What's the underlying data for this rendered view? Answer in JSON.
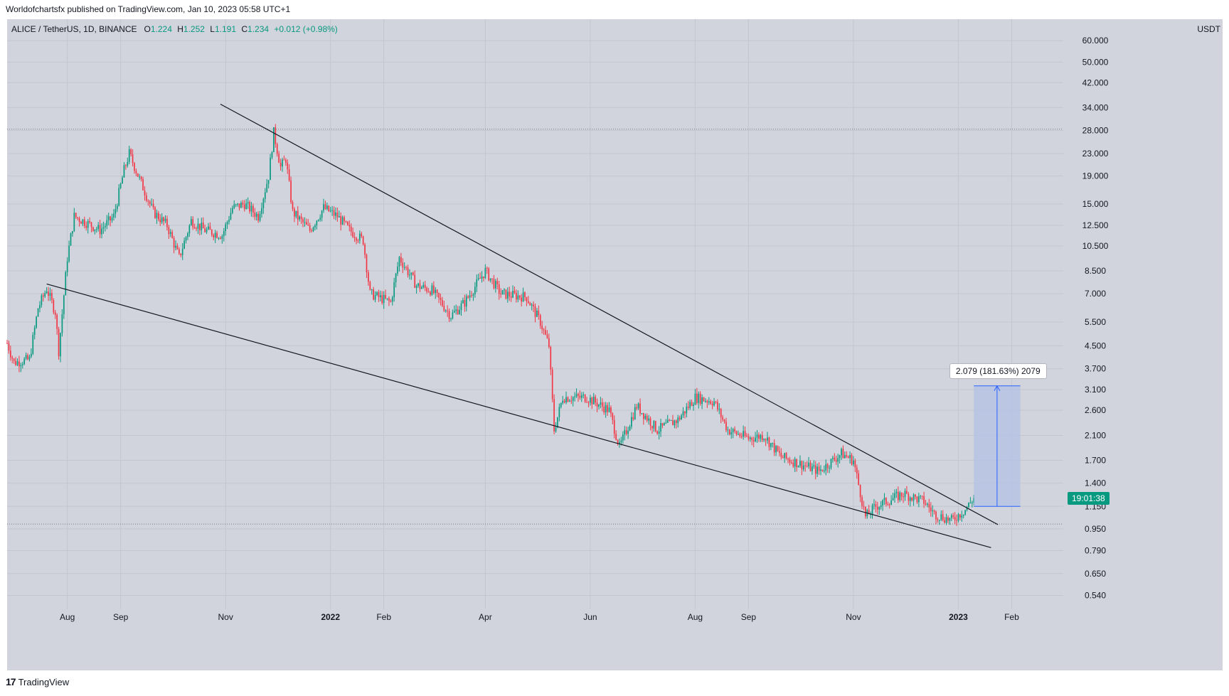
{
  "header": {
    "published_line": "Worldofchartsfx published on TradingView.com, Jan 10, 2023 05:58 UTC+1"
  },
  "symbol": {
    "name": "ALICE / TetherUS, 1D, BINANCE",
    "open_label": "O",
    "open": "1.224",
    "high_label": "H",
    "high": "1.252",
    "low_label": "L",
    "low": "1.191",
    "close_label": "C",
    "close": "1.234",
    "change": "+0.012 (+0.98%)"
  },
  "currency": "USDT",
  "footer": {
    "brand": "TradingView",
    "brand_mark": "17"
  },
  "measure_label": "2.079 (181.63%) 2079",
  "countdown": "19:01:38",
  "colors": {
    "up": "#089981",
    "down": "#f23645",
    "background": "#d1d4dc",
    "measure_fill": "#b3c2e6",
    "measure_line": "#2962ff"
  },
  "chart_data": {
    "type": "candlestick",
    "scale": "log",
    "title": "ALICE / TetherUS, 1D, BINANCE",
    "y_ticks": [
      "60.000",
      "50.000",
      "42.000",
      "34.000",
      "28.000",
      "23.000",
      "19.000",
      "15.000",
      "12.500",
      "10.500",
      "8.500",
      "7.000",
      "5.500",
      "4.500",
      "3.700",
      "3.100",
      "2.600",
      "2.100",
      "1.700",
      "1.400",
      "1.150",
      "0.950",
      "0.790",
      "0.650",
      "0.540"
    ],
    "x_ticks": [
      {
        "label": "Aug",
        "date": "2021-08-01"
      },
      {
        "label": "Sep",
        "date": "2021-09-01"
      },
      {
        "label": "Nov",
        "date": "2021-11-01"
      },
      {
        "label": "2022",
        "date": "2022-01-01",
        "bold": true
      },
      {
        "label": "Feb",
        "date": "2022-02-01"
      },
      {
        "label": "Apr",
        "date": "2022-04-01"
      },
      {
        "label": "Jun",
        "date": "2022-06-01"
      },
      {
        "label": "Aug",
        "date": "2022-08-01"
      },
      {
        "label": "Sep",
        "date": "2022-09-01"
      },
      {
        "label": "Nov",
        "date": "2022-11-01"
      },
      {
        "label": "2023",
        "date": "2023-01-01",
        "bold": true
      },
      {
        "label": "Feb",
        "date": "2023-02-01"
      }
    ],
    "x_range": [
      "2021-06-27",
      "2023-03-03"
    ],
    "y_range": [
      0.48,
      72
    ],
    "price_path": [
      {
        "date": "2021-06-27",
        "price": 4.6
      },
      {
        "date": "2021-07-01",
        "price": 3.9
      },
      {
        "date": "2021-07-10",
        "price": 4.0
      },
      {
        "date": "2021-07-15",
        "price": 6.2
      },
      {
        "date": "2021-07-20",
        "price": 7.3
      },
      {
        "date": "2021-07-25",
        "price": 6.0
      },
      {
        "date": "2021-07-27",
        "price": 4.3
      },
      {
        "date": "2021-08-01",
        "price": 9.5
      },
      {
        "date": "2021-08-05",
        "price": 13.5
      },
      {
        "date": "2021-08-10",
        "price": 13.0
      },
      {
        "date": "2021-08-20",
        "price": 12.0
      },
      {
        "date": "2021-08-28",
        "price": 13.5
      },
      {
        "date": "2021-09-03",
        "price": 20.0
      },
      {
        "date": "2021-09-06",
        "price": 23.0
      },
      {
        "date": "2021-09-12",
        "price": 18.5
      },
      {
        "date": "2021-09-20",
        "price": 14.0
      },
      {
        "date": "2021-09-28",
        "price": 12.5
      },
      {
        "date": "2021-10-05",
        "price": 9.5
      },
      {
        "date": "2021-10-12",
        "price": 13.0
      },
      {
        "date": "2021-10-20",
        "price": 12.0
      },
      {
        "date": "2021-10-30",
        "price": 11.5
      },
      {
        "date": "2021-11-05",
        "price": 14.5
      },
      {
        "date": "2021-11-12",
        "price": 15.0
      },
      {
        "date": "2021-11-20",
        "price": 13.5
      },
      {
        "date": "2021-11-26",
        "price": 19.0
      },
      {
        "date": "2021-11-29",
        "price": 27.5
      },
      {
        "date": "2021-12-03",
        "price": 20.5
      },
      {
        "date": "2021-12-06",
        "price": 22.0
      },
      {
        "date": "2021-12-10",
        "price": 14.0
      },
      {
        "date": "2021-12-20",
        "price": 12.0
      },
      {
        "date": "2021-12-28",
        "price": 14.5
      },
      {
        "date": "2022-01-05",
        "price": 13.5
      },
      {
        "date": "2022-01-12",
        "price": 12.0
      },
      {
        "date": "2022-01-20",
        "price": 11.0
      },
      {
        "date": "2022-01-24",
        "price": 7.0
      },
      {
        "date": "2022-02-05",
        "price": 6.5
      },
      {
        "date": "2022-02-10",
        "price": 9.5
      },
      {
        "date": "2022-02-20",
        "price": 7.5
      },
      {
        "date": "2022-03-01",
        "price": 7.2
      },
      {
        "date": "2022-03-12",
        "price": 5.8
      },
      {
        "date": "2022-03-20",
        "price": 6.5
      },
      {
        "date": "2022-04-01",
        "price": 8.5
      },
      {
        "date": "2022-04-10",
        "price": 7.0
      },
      {
        "date": "2022-04-25",
        "price": 6.8
      },
      {
        "date": "2022-05-03",
        "price": 5.5
      },
      {
        "date": "2022-05-08",
        "price": 4.5
      },
      {
        "date": "2022-05-11",
        "price": 2.2
      },
      {
        "date": "2022-05-16",
        "price": 2.9
      },
      {
        "date": "2022-05-30",
        "price": 2.9
      },
      {
        "date": "2022-06-12",
        "price": 2.6
      },
      {
        "date": "2022-06-18",
        "price": 1.9
      },
      {
        "date": "2022-06-28",
        "price": 2.7
      },
      {
        "date": "2022-07-10",
        "price": 2.2
      },
      {
        "date": "2022-07-22",
        "price": 2.4
      },
      {
        "date": "2022-08-01",
        "price": 2.9
      },
      {
        "date": "2022-08-12",
        "price": 2.8
      },
      {
        "date": "2022-08-20",
        "price": 2.2
      },
      {
        "date": "2022-09-01",
        "price": 2.05
      },
      {
        "date": "2022-09-10",
        "price": 2.1
      },
      {
        "date": "2022-09-20",
        "price": 1.75
      },
      {
        "date": "2022-10-01",
        "price": 1.65
      },
      {
        "date": "2022-10-12",
        "price": 1.55
      },
      {
        "date": "2022-10-25",
        "price": 1.8
      },
      {
        "date": "2022-11-01",
        "price": 1.7
      },
      {
        "date": "2022-11-08",
        "price": 1.05
      },
      {
        "date": "2022-11-14",
        "price": 1.15
      },
      {
        "date": "2022-11-30",
        "price": 1.28
      },
      {
        "date": "2022-12-12",
        "price": 1.2
      },
      {
        "date": "2022-12-18",
        "price": 1.08
      },
      {
        "date": "2022-12-28",
        "price": 1.02
      },
      {
        "date": "2023-01-05",
        "price": 1.12
      },
      {
        "date": "2023-01-10",
        "price": 1.234
      }
    ],
    "horizontal_levels": [
      28.3,
      0.99
    ],
    "trendlines": [
      {
        "name": "upper",
        "from": {
          "date": "2021-10-29",
          "price": 35.0
        },
        "to": {
          "date": "2023-01-24",
          "price": 0.985
        }
      },
      {
        "name": "lower",
        "from": {
          "date": "2021-07-20",
          "price": 7.6
        },
        "to": {
          "date": "2023-01-20",
          "price": 0.81
        }
      }
    ],
    "measure": {
      "from_price": 1.15,
      "to_price": 3.2,
      "from_date": "2023-01-10",
      "to_date": "2023-02-06",
      "label": "2.079 (181.63%) 2079"
    },
    "last_price": 1.234
  }
}
